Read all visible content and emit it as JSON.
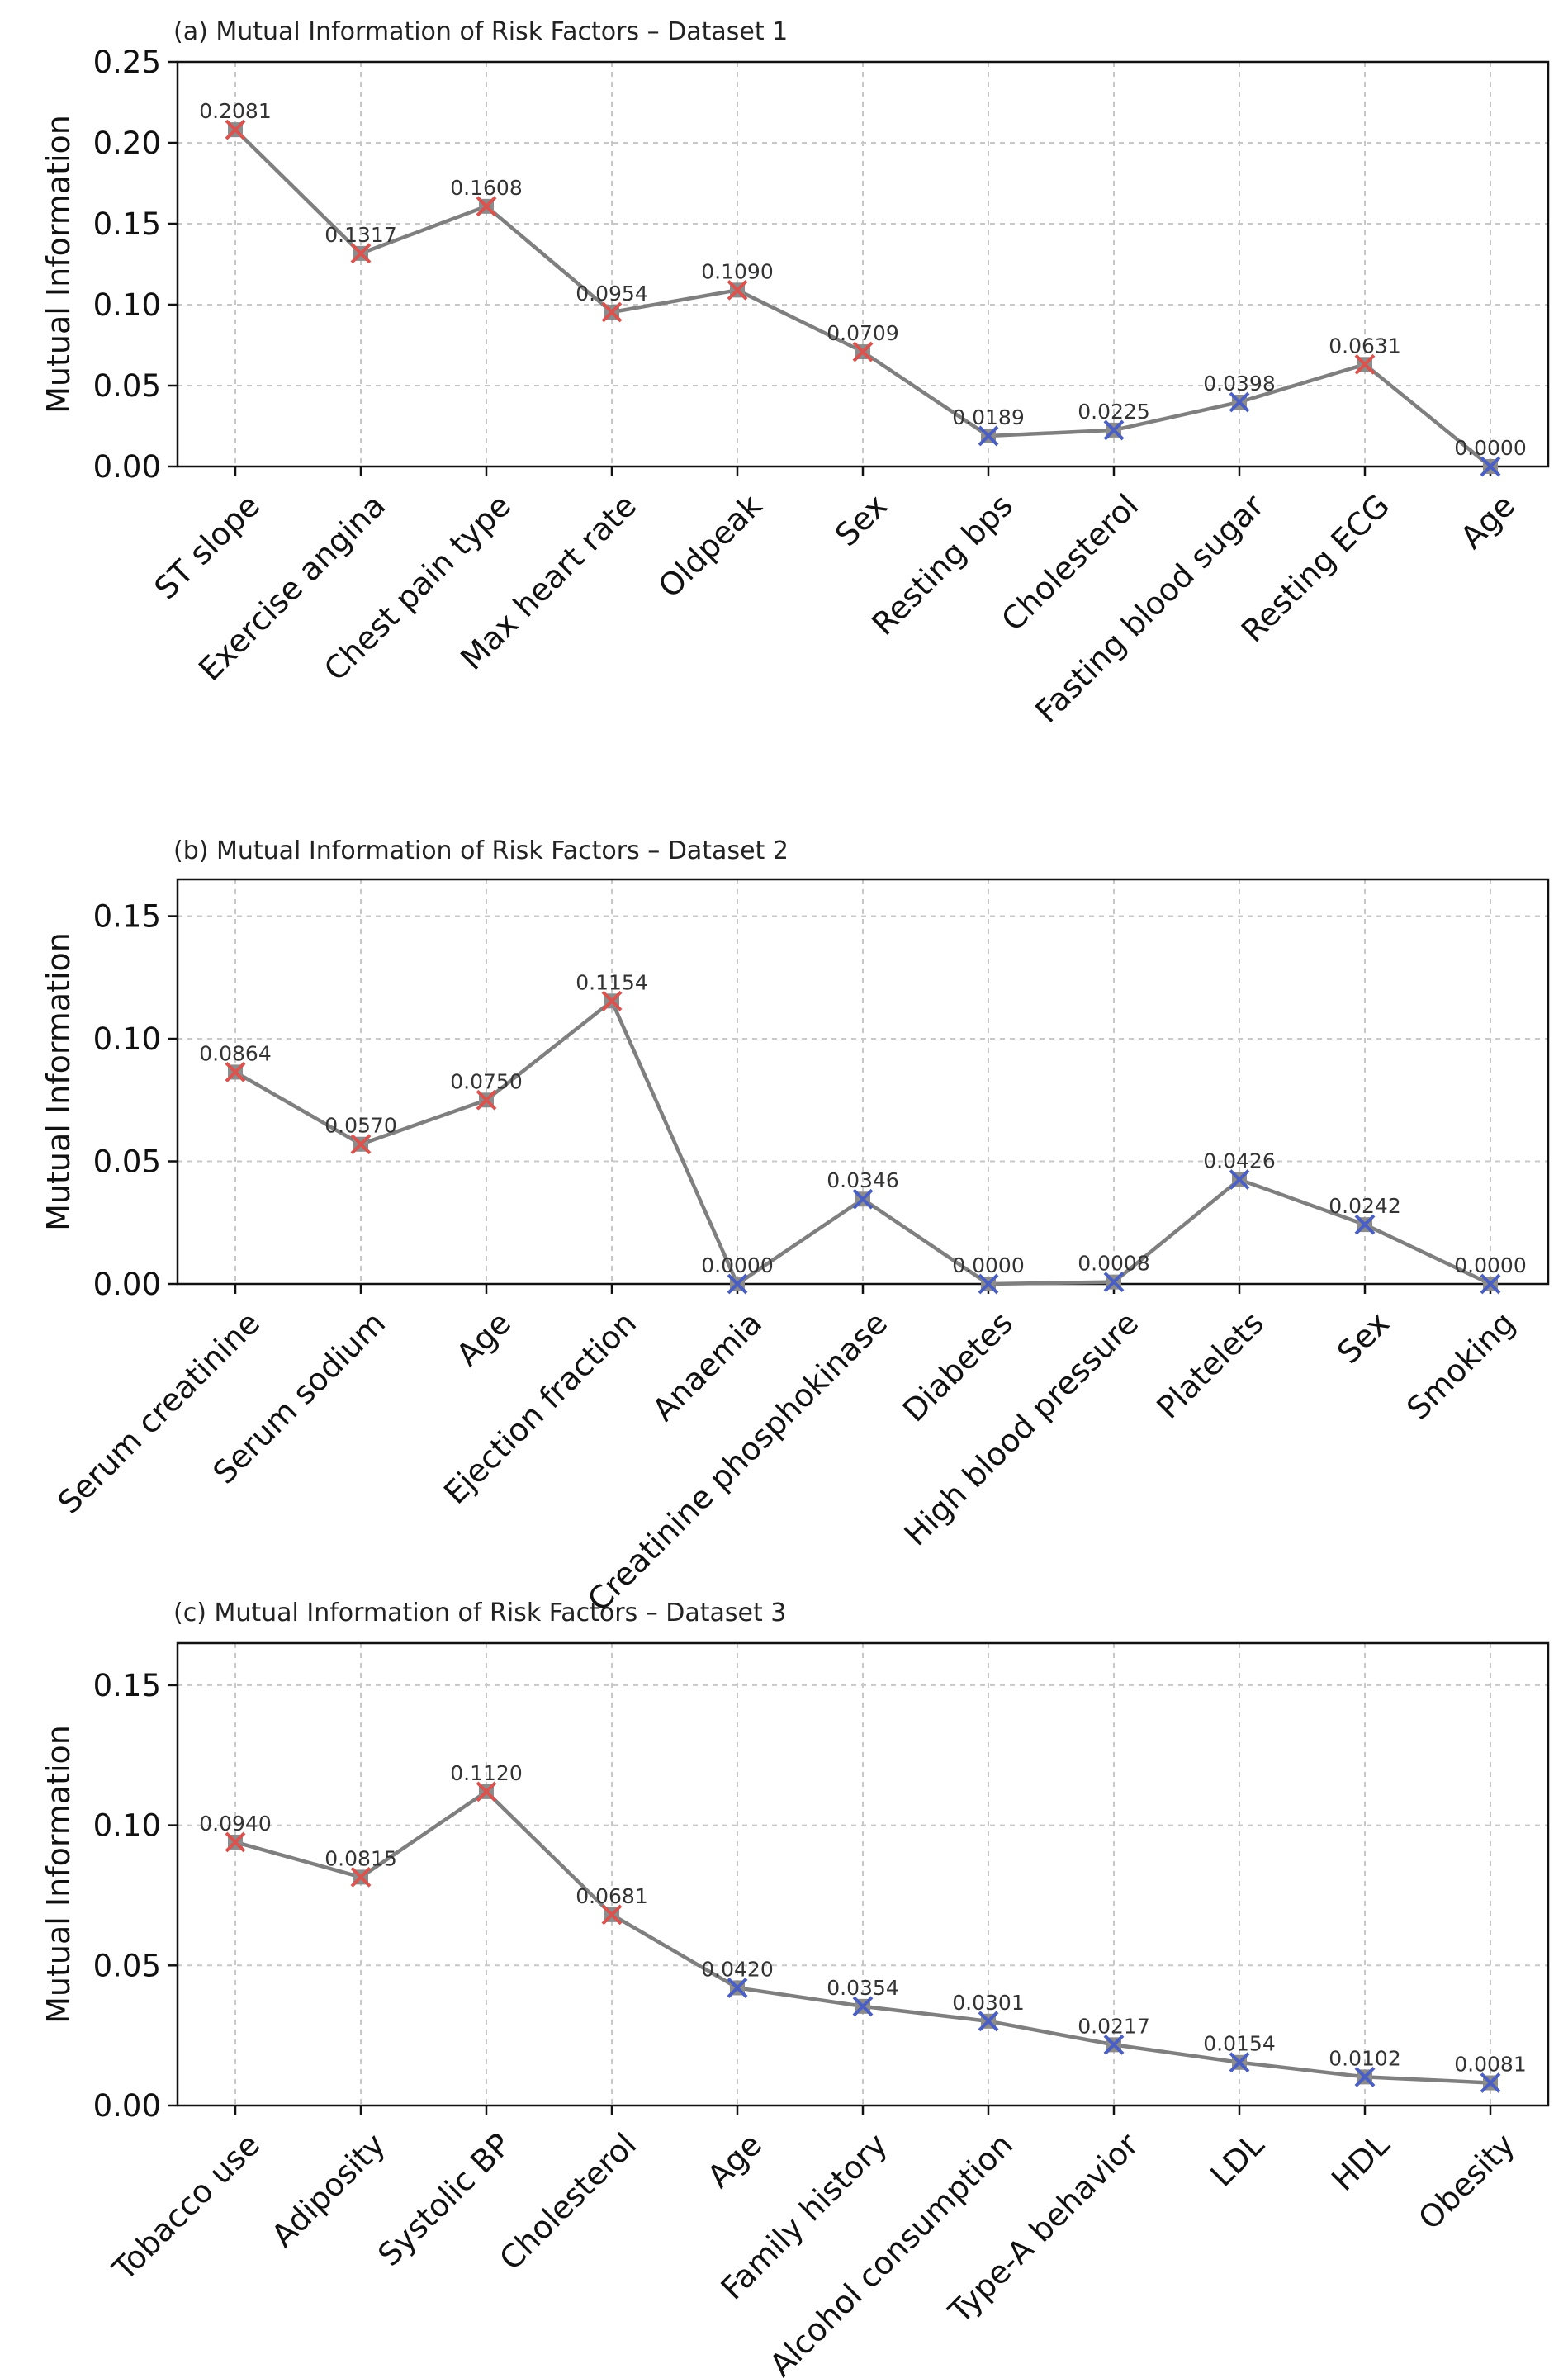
{
  "chart_data": [
    {
      "type": "line",
      "title": "(a) Mutual Information of Risk Factors – Dataset 1",
      "ylabel": "Mutual Information",
      "xlabel": "",
      "ylim": [
        0,
        0.25
      ],
      "yticks": [
        "0.00",
        "0.05",
        "0.10",
        "0.15",
        "0.20",
        "0.25"
      ],
      "grid": true,
      "categories": [
        "ST slope",
        "Exercise angina",
        "Chest pain type",
        "Max heart rate",
        "Oldpeak",
        "Sex",
        "Resting bps",
        "Cholesterol",
        "Fasting blood sugar",
        "Resting ECG",
        "Age"
      ],
      "values": [
        0.2081,
        0.1317,
        0.1608,
        0.0954,
        0.109,
        0.0709,
        0.0189,
        0.0225,
        0.0398,
        0.0631,
        0.0
      ],
      "labels": [
        "0.2081",
        "0.1317",
        "0.1608",
        "0.0954",
        "0.1090",
        "0.0709",
        "0.0189",
        "0.0225",
        "0.0398",
        "0.0631",
        "0.0000"
      ],
      "marker_colors": [
        "#d9534f",
        "#d9534f",
        "#d9534f",
        "#d9534f",
        "#d9534f",
        "#d9534f",
        "#4a5fc1",
        "#4a5fc1",
        "#4a5fc1",
        "#d9534f",
        "#4a5fc1"
      ]
    },
    {
      "type": "line",
      "title": "(b) Mutual Information of Risk Factors – Dataset 2",
      "ylabel": "Mutual Information",
      "xlabel": "",
      "ylim": [
        0,
        0.165
      ],
      "yticks": [
        "0.00",
        "0.05",
        "0.10",
        "0.15"
      ],
      "grid": true,
      "categories": [
        "Serum creatinine",
        "Serum sodium",
        "Age",
        "Ejection fraction",
        "Anaemia",
        "Creatinine phosphokinase",
        "Diabetes",
        "High blood pressure",
        "Platelets",
        "Sex",
        "Smoking"
      ],
      "values": [
        0.0864,
        0.057,
        0.075,
        0.1154,
        0.0,
        0.0346,
        0.0,
        0.0008,
        0.0426,
        0.0242,
        0.0
      ],
      "labels": [
        "0.0864",
        "0.0570",
        "0.0750",
        "0.1154",
        "0.0000",
        "0.0346",
        "0.0000",
        "0.0008",
        "0.0426",
        "0.0242",
        "0.0000"
      ],
      "marker_colors": [
        "#d9534f",
        "#d9534f",
        "#d9534f",
        "#d9534f",
        "#4a5fc1",
        "#4a5fc1",
        "#4a5fc1",
        "#4a5fc1",
        "#4a5fc1",
        "#4a5fc1",
        "#4a5fc1"
      ]
    },
    {
      "type": "line",
      "title": "(c) Mutual Information of Risk Factors – Dataset 3",
      "ylabel": "Mutual Information",
      "xlabel": "",
      "ylim": [
        0,
        0.165
      ],
      "yticks": [
        "0.00",
        "0.05",
        "0.10",
        "0.15"
      ],
      "grid": true,
      "categories": [
        "Tobacco use",
        "Adiposity",
        "Systolic BP",
        "Cholesterol",
        "Age",
        "Family history",
        "Alcohol consumption",
        "Type-A behavior",
        "LDL",
        "HDL",
        "Obesity"
      ],
      "values": [
        0.094,
        0.0815,
        0.112,
        0.0681,
        0.042,
        0.0354,
        0.0301,
        0.0217,
        0.0154,
        0.0102,
        0.0081
      ],
      "labels": [
        "0.0940",
        "0.0815",
        "0.1120",
        "0.0681",
        "0.0420",
        "0.0354",
        "0.0301",
        "0.0217",
        "0.0154",
        "0.0102",
        "0.0081"
      ],
      "marker_colors": [
        "#d9534f",
        "#d9534f",
        "#d9534f",
        "#d9534f",
        "#4a5fc1",
        "#4a5fc1",
        "#4a5fc1",
        "#4a5fc1",
        "#4a5fc1",
        "#4a5fc1",
        "#4a5fc1"
      ]
    }
  ]
}
